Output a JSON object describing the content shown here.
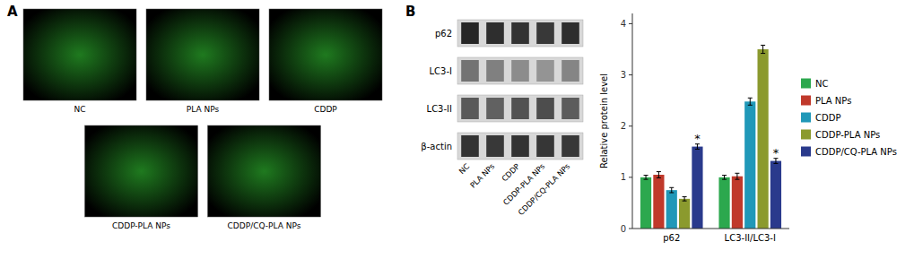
{
  "chart_data": [
    {
      "type": "image",
      "title": "A",
      "categories": [
        "NC",
        "PLA NPs",
        "CDDP",
        "CDDP-PLA NPs",
        "CDDP/CQ-PLA NPs"
      ]
    },
    {
      "type": "blot",
      "title": "B",
      "categories": [
        "NC",
        "PLA NPs",
        "CDDP",
        "CDDP-PLA NPs",
        "CDDP/CQ-PLA NPs"
      ],
      "series": [
        {
          "name": "p62",
          "values": [
            0.15,
            0.18,
            0.2,
            0.22,
            0.18
          ]
        },
        {
          "name": "LC3-I",
          "values": [
            0.45,
            0.5,
            0.55,
            0.58,
            0.52
          ]
        },
        {
          "name": "LC3-II",
          "values": [
            0.35,
            0.38,
            0.32,
            0.3,
            0.36
          ]
        },
        {
          "name": "β-actin",
          "values": [
            0.2,
            0.22,
            0.2,
            0.21,
            0.22
          ]
        }
      ]
    },
    {
      "type": "bar",
      "categories": [
        "p62",
        "LC3-II/LC3-I"
      ],
      "series": [
        {
          "name": "NC",
          "color": "#2ca84e",
          "values": [
            1.0,
            1.0
          ],
          "errors": [
            0.04,
            0.04
          ]
        },
        {
          "name": "PLA NPs",
          "color": "#c0392b",
          "values": [
            1.05,
            1.02
          ],
          "errors": [
            0.06,
            0.06
          ]
        },
        {
          "name": "CDDP",
          "color": "#2098b8",
          "values": [
            0.75,
            2.48
          ],
          "errors": [
            0.05,
            0.07
          ]
        },
        {
          "name": "CDDP-PLA NPs",
          "color": "#8b9a2e",
          "values": [
            0.58,
            3.5
          ],
          "errors": [
            0.04,
            0.08
          ]
        },
        {
          "name": "CDDP/CQ-PLA NPs",
          "color": "#2a3a8c",
          "values": [
            1.6,
            1.32
          ],
          "errors": [
            0.05,
            0.05
          ]
        }
      ],
      "ylabel": "Relative protein level",
      "ylim": [
        0,
        4.2
      ],
      "yticks": [
        0,
        1,
        2,
        3,
        4
      ],
      "legend": "right",
      "annotations": [
        {
          "text": "*",
          "series": "CDDP/CQ-PLA NPs",
          "category": "p62"
        },
        {
          "text": "*",
          "series": "CDDP/CQ-PLA NPs",
          "category": "LC3-II/LC3-I"
        }
      ]
    }
  ]
}
